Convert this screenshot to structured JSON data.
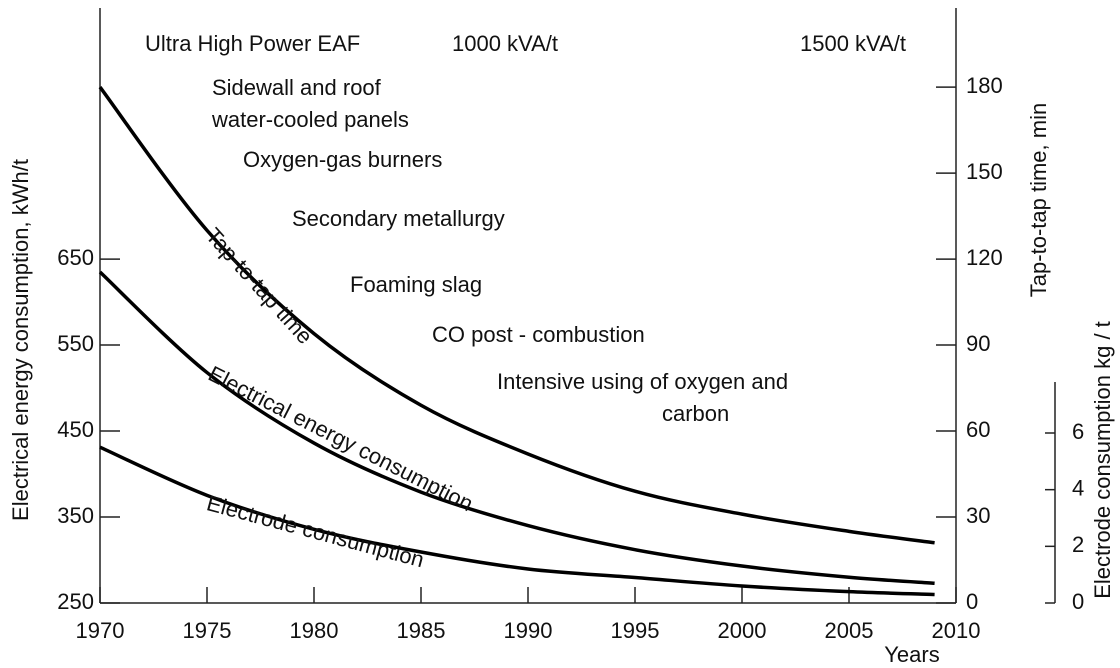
{
  "chart_data": {
    "type": "line",
    "xlabel": "Years",
    "ylabel": "Electrical energy consumption, kWh/t",
    "y2label": "Tap-to-tap time, min",
    "y3label": "Electrode consumption kg / t",
    "annotations": [
      "Ultra High Power EAF",
      "1000 kVA/t",
      "1500 kVA/t",
      "Sidewall and roof",
      "water-cooled panels",
      "Oxygen-gas burners",
      "Secondary metallurgy",
      "Foaming slag",
      "CO post - combustion",
      "Intensive using of oxygen and",
      "carbon"
    ],
    "x": [
      1970,
      1975,
      1980,
      1985,
      1990,
      1995,
      2000,
      2005,
      2009
    ],
    "xlim": [
      1970,
      2010
    ],
    "xticks": [
      1970,
      1975,
      1980,
      1985,
      1990,
      1995,
      2000,
      2005,
      2010
    ],
    "ylim": [
      250,
      942
    ],
    "yticks": [
      250,
      350,
      450,
      550,
      650
    ],
    "y2lim": [
      0,
      207.6
    ],
    "y2ticks": [
      0,
      30,
      60,
      90,
      120,
      150,
      180
    ],
    "y3lim": [
      0,
      7.8
    ],
    "y3ticks": [
      0,
      2,
      4,
      6
    ],
    "series": [
      {
        "name": "Tap-to-tap time",
        "color": "#000000",
        "axis": "y2",
        "values": [
          180,
          130,
          94,
          69,
          52,
          39,
          31,
          25,
          21
        ]
      },
      {
        "name": "Electrical energy consumption",
        "color": "#000000",
        "axis": "y",
        "values": [
          635,
          518,
          436,
          379,
          340,
          312,
          293,
          280,
          273
        ]
      },
      {
        "name": "Electrode consumption",
        "color": "#000000",
        "axis": "y3",
        "values": [
          5.5,
          3.8,
          2.6,
          1.8,
          1.2,
          0.9,
          0.6,
          0.4,
          0.3
        ]
      }
    ]
  }
}
